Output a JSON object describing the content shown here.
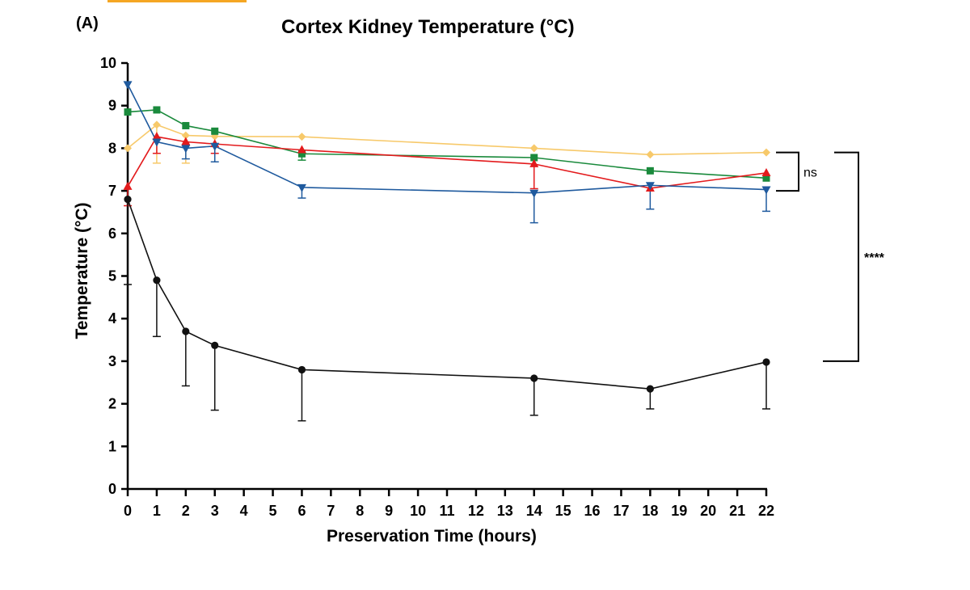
{
  "panel_label": "(A)",
  "chart_data": {
    "type": "line",
    "title": "Cortex Kidney Temperature (°C)",
    "xlabel": "Preservation Time (hours)",
    "ylabel": "Temperature (°C)",
    "xlim": [
      0,
      22
    ],
    "ylim": [
      0,
      10
    ],
    "xticks": [
      0,
      1,
      2,
      3,
      4,
      5,
      6,
      7,
      8,
      9,
      10,
      11,
      12,
      13,
      14,
      15,
      16,
      17,
      18,
      19,
      20,
      21,
      22
    ],
    "yticks": [
      0,
      1,
      2,
      3,
      4,
      5,
      6,
      7,
      8,
      9,
      10
    ],
    "x": [
      0,
      1,
      2,
      3,
      6,
      14,
      18,
      22
    ],
    "series": [
      {
        "name": "yellow",
        "color": "#f7c96a",
        "marker": "diamond",
        "values": [
          8.0,
          8.55,
          8.3,
          8.28,
          8.27,
          8.0,
          7.85,
          7.9
        ],
        "err_low": [
          null,
          7.65,
          7.65,
          null,
          null,
          null,
          null,
          null
        ]
      },
      {
        "name": "green",
        "color": "#1a8a3c",
        "marker": "square",
        "values": [
          8.85,
          8.9,
          8.53,
          8.4,
          7.87,
          7.78,
          7.47,
          7.3
        ],
        "err_low": [
          null,
          null,
          null,
          null,
          7.72,
          null,
          null,
          null
        ]
      },
      {
        "name": "red",
        "color": "#e31a1c",
        "marker": "triangle-up",
        "values": [
          7.1,
          8.27,
          8.15,
          8.1,
          7.96,
          7.63,
          7.06,
          7.42
        ],
        "err_low": [
          6.65,
          7.88,
          null,
          7.88,
          null,
          7.05,
          null,
          null
        ]
      },
      {
        "name": "blue",
        "color": "#1f5a9e",
        "marker": "triangle-down",
        "values": [
          9.5,
          8.15,
          8.0,
          8.05,
          7.08,
          6.95,
          7.13,
          7.03
        ],
        "err_low": [
          null,
          null,
          7.75,
          7.68,
          6.83,
          6.25,
          6.57,
          6.52
        ]
      },
      {
        "name": "black",
        "color": "#111111",
        "marker": "circle",
        "values": [
          6.8,
          4.9,
          3.7,
          3.37,
          2.8,
          2.6,
          2.35,
          2.98
        ],
        "err_low": [
          4.8,
          3.58,
          2.42,
          1.85,
          1.6,
          1.73,
          1.88,
          1.88
        ]
      }
    ],
    "annotations": [
      {
        "text": "ns",
        "bracket_y": [
          7.0,
          7.9
        ]
      },
      {
        "text": "****",
        "bracket_y": [
          3.0,
          7.9
        ]
      }
    ]
  }
}
